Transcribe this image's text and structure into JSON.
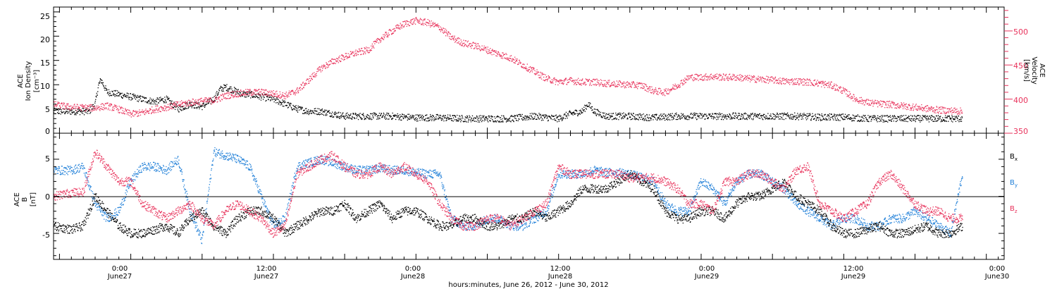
{
  "colors": {
    "axis": "#000000",
    "density": "#000000",
    "velocity": "#e8335c",
    "bx": "#000000",
    "by": "#1f7fd8",
    "bz": "#e8335c"
  },
  "xaxis": {
    "range_hours": [
      -6.5,
      73.5
    ],
    "ticks": [
      {
        "hour": 0,
        "time": "0:00",
        "date": "June27"
      },
      {
        "hour": 12,
        "time": "12:00",
        "date": "June27"
      },
      {
        "hour": 24,
        "time": "0:00",
        "date": "June28"
      },
      {
        "hour": 36,
        "time": "12:00",
        "date": "June28"
      },
      {
        "hour": 48,
        "time": "0:00",
        "date": "June29"
      },
      {
        "hour": 60,
        "time": "12:00",
        "date": "June29"
      },
      {
        "hour": 72,
        "time": "0:00",
        "date": "June30"
      }
    ],
    "label": "hours:minutes, June 26, 2012 - June 30, 2012"
  },
  "top_panel": {
    "left_label": [
      "ACE",
      "Ion Density",
      "[cm⁻³]"
    ],
    "right_label": [
      "ACE",
      "Velocity",
      "[km/s]"
    ],
    "left_ticks": [
      "0",
      "5",
      "10",
      "15",
      "20",
      "25"
    ],
    "right_ticks": [
      "350",
      "400",
      "450",
      "500"
    ]
  },
  "bottom_panel": {
    "left_label": [
      "ACE",
      "B",
      "[nT]"
    ],
    "left_ticks": [
      "-5",
      "0",
      "5"
    ],
    "legend": [
      "Bx",
      "By",
      "Bz"
    ]
  },
  "chart_data": [
    {
      "type": "scatter",
      "title": "",
      "xlabel": "hours:minutes, June 26, 2012 - June 30, 2012",
      "ylabel": "ACE Ion Density [cm⁻³]",
      "y2label": "ACE Velocity [km/s]",
      "xlim": [
        -6.5,
        73.5
      ],
      "ylim": [
        0,
        26
      ],
      "y2lim": [
        350,
        535
      ],
      "series": [
        {
          "name": "Ion Density",
          "axis": "left",
          "x": [
            -6.5,
            -5,
            -3.5,
            -3,
            -2.7,
            -2.5,
            -2,
            -1,
            0,
            1,
            2,
            3,
            4,
            5,
            6,
            7,
            7.5,
            8,
            8.5,
            9,
            9.5,
            10,
            11,
            12,
            13,
            14,
            15,
            16,
            17,
            18,
            20,
            22,
            24,
            26,
            28,
            30,
            32,
            34,
            36,
            37,
            38,
            38.5,
            39,
            40,
            41,
            42,
            44,
            46,
            48,
            50,
            52,
            54,
            56,
            58,
            60,
            62,
            64,
            66,
            68,
            69,
            70
          ],
          "y": [
            4.5,
            4.5,
            4.5,
            6,
            10,
            11,
            8.5,
            8,
            7.5,
            7,
            6.5,
            7,
            5,
            6,
            5.5,
            7,
            9,
            9.5,
            9,
            8.5,
            8,
            8,
            7.5,
            7,
            6,
            5,
            4.5,
            4.5,
            4,
            3.5,
            3.5,
            3.5,
            3.2,
            3.2,
            3,
            3,
            3,
            3.5,
            3,
            4,
            4.5,
            6,
            4.5,
            3.5,
            3.5,
            3.5,
            3.2,
            3.5,
            3.5,
            3.5,
            3.5,
            3.5,
            3.5,
            3.3,
            3.3,
            3,
            3,
            3,
            3,
            3,
            3
          ]
        },
        {
          "name": "Velocity",
          "axis": "right",
          "x": [
            -6.5,
            -5,
            -3,
            -2,
            -1,
            0,
            1,
            2,
            3,
            4,
            5,
            6,
            7,
            8,
            9,
            10,
            11,
            12,
            13,
            14,
            15,
            16,
            17,
            18,
            19,
            20,
            21,
            22,
            23,
            24,
            25,
            26,
            27,
            28,
            29,
            30,
            31,
            32,
            33,
            34,
            35,
            36,
            37,
            38,
            39,
            40,
            41,
            42,
            43,
            44,
            45,
            46,
            47,
            48,
            49,
            50,
            51,
            52,
            53,
            54,
            55,
            56,
            57,
            58,
            59,
            60,
            61,
            62,
            63,
            64,
            65,
            66,
            67,
            68,
            69,
            70
          ],
          "y": [
            392,
            388,
            387,
            390,
            385,
            378,
            380,
            385,
            388,
            392,
            395,
            397,
            398,
            405,
            408,
            410,
            410,
            408,
            405,
            412,
            428,
            445,
            455,
            462,
            468,
            472,
            488,
            500,
            510,
            515,
            512,
            505,
            490,
            482,
            478,
            472,
            466,
            460,
            450,
            440,
            430,
            425,
            427,
            425,
            425,
            423,
            422,
            421,
            420,
            412,
            410,
            420,
            432,
            432,
            433,
            432,
            432,
            430,
            429,
            428,
            426,
            426,
            425,
            423,
            420,
            412,
            400,
            395,
            393,
            392,
            390,
            388,
            386,
            384,
            383,
            382
          ]
        }
      ]
    },
    {
      "type": "scatter",
      "title": "",
      "xlabel": "hours:minutes, June 26, 2012 - June 30, 2012",
      "ylabel": "ACE B [nT]",
      "xlim": [
        -6.5,
        73.5
      ],
      "ylim": [
        -8.5,
        8.5
      ],
      "series": [
        {
          "name": "Bx",
          "x": [
            -6.5,
            -5,
            -4,
            -3,
            -2,
            -1,
            0,
            1,
            2,
            3,
            4,
            5,
            6,
            7,
            8,
            9,
            10,
            11,
            12,
            13,
            14,
            15,
            16,
            17,
            18,
            19,
            20,
            21,
            22,
            23,
            24,
            25,
            26,
            27,
            28,
            29,
            30,
            31,
            32,
            33,
            34,
            35,
            36,
            37,
            38,
            39,
            40,
            41,
            42,
            43,
            44,
            45,
            46,
            47,
            48,
            49,
            50,
            51,
            52,
            53,
            54,
            55,
            56,
            57,
            58,
            59,
            60,
            61,
            62,
            63,
            64,
            65,
            66,
            67,
            68,
            69,
            70
          ],
          "y": [
            -4,
            -4.5,
            -4,
            0,
            -2,
            -4,
            -5,
            -5,
            -4.5,
            -4,
            -5,
            -3,
            -2,
            -4,
            -5,
            -3,
            -2,
            -2,
            -3,
            -5,
            -4,
            -3,
            -2,
            -2,
            -1,
            -3,
            -2,
            -1,
            -3,
            -2,
            -2,
            -3,
            -4,
            -4,
            -3,
            -3,
            -4,
            -4,
            -3,
            -3,
            -2,
            -3,
            -2,
            -1,
            1,
            1,
            1,
            2,
            3,
            2,
            1,
            -2,
            -3,
            -3,
            -2,
            -2,
            -3,
            -1,
            0,
            0,
            1,
            2,
            0,
            -1,
            -2,
            -4,
            -5,
            -5,
            -4.5,
            -4,
            -5,
            -5,
            -4.5,
            -4,
            -5,
            -5,
            -4
          ]
        },
        {
          "name": "By",
          "x": [
            -6.5,
            -5,
            -4,
            -3,
            -2,
            -1,
            0,
            1,
            2,
            3,
            4,
            5,
            6,
            7,
            8,
            9,
            10,
            11,
            12,
            13,
            14,
            15,
            16,
            17,
            18,
            19,
            20,
            21,
            22,
            23,
            24,
            25,
            26,
            27,
            28,
            29,
            30,
            31,
            32,
            33,
            34,
            35,
            36,
            37,
            38,
            39,
            40,
            41,
            42,
            43,
            44,
            45,
            46,
            47,
            48,
            49,
            50,
            51,
            52,
            53,
            54,
            55,
            56,
            57,
            58,
            59,
            60,
            61,
            62,
            63,
            64,
            65,
            66,
            67,
            68,
            69,
            70
          ],
          "y": [
            3.5,
            3.5,
            4,
            -1,
            -3,
            -2,
            2,
            4,
            4,
            3.5,
            5,
            -2,
            -6,
            6,
            5.5,
            5,
            4,
            0,
            -4,
            -3,
            4,
            4.5,
            5,
            4.5,
            4,
            3.5,
            3.5,
            3.8,
            3.5,
            3.5,
            3.2,
            3,
            3,
            -3,
            -4,
            -4,
            -3,
            -3,
            -4,
            -4,
            -3,
            -2,
            3,
            3,
            3,
            3.5,
            3.2,
            3.2,
            3,
            2.5,
            2,
            -1,
            -2,
            -2,
            2,
            1,
            -1,
            2,
            3,
            3,
            2,
            1,
            -1,
            -2,
            -3,
            -4,
            -3,
            -3,
            -4,
            -4,
            -3,
            -3,
            -2,
            -3,
            -4,
            -5,
            3
          ]
        },
        {
          "name": "Bz",
          "x": [
            -6.5,
            -5,
            -4,
            -3,
            -2,
            -1,
            0,
            1,
            2,
            3,
            4,
            5,
            6,
            7,
            8,
            9,
            10,
            11,
            12,
            13,
            14,
            15,
            16,
            17,
            18,
            19,
            20,
            21,
            22,
            23,
            24,
            25,
            26,
            27,
            28,
            29,
            30,
            31,
            32,
            33,
            34,
            35,
            36,
            37,
            38,
            39,
            40,
            41,
            42,
            43,
            44,
            45,
            46,
            47,
            48,
            49,
            50,
            51,
            52,
            53,
            54,
            55,
            56,
            57,
            58,
            59,
            60,
            61,
            62,
            63,
            64,
            65,
            66,
            67,
            68,
            69,
            70
          ],
          "y": [
            0,
            0.5,
            0.5,
            6,
            4,
            2,
            2,
            -1,
            -2,
            -3,
            -2,
            -1,
            -3,
            -4,
            -2,
            -1,
            -2,
            -3,
            -5,
            -4,
            3,
            4,
            5,
            5.5,
            4,
            3,
            3,
            4,
            3,
            4,
            3,
            2,
            -1,
            -3,
            -4,
            -4,
            -3,
            -3,
            -4,
            -3,
            -2,
            -1,
            4,
            3,
            3,
            3,
            3,
            3,
            2.5,
            2.5,
            2.5,
            2,
            1,
            -1,
            -1,
            -2,
            2,
            2,
            3,
            3,
            2,
            1,
            3.5,
            4,
            -1,
            -2,
            -3,
            -2,
            -1,
            2,
            3,
            1,
            -1,
            -2,
            -2,
            -3,
            -3
          ]
        }
      ]
    }
  ]
}
